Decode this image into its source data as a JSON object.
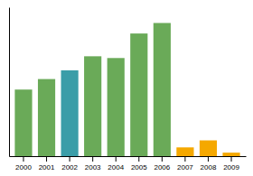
{
  "chart_data": {
    "type": "bar",
    "categories": [
      "2000",
      "2001",
      "2002",
      "2003",
      "2004",
      "2005",
      "2006",
      "2007",
      "2008",
      "2009"
    ],
    "values": [
      38,
      44,
      49,
      57,
      56,
      70,
      76,
      5,
      9,
      2
    ],
    "colors": [
      "#6aaa58",
      "#6aaa58",
      "#3a9da8",
      "#6aaa58",
      "#6aaa58",
      "#6aaa58",
      "#6aaa58",
      "#f5a800",
      "#f5a800",
      "#f5a800"
    ],
    "ylim": [
      0,
      85
    ],
    "grid": false,
    "tick_labels": "x"
  }
}
